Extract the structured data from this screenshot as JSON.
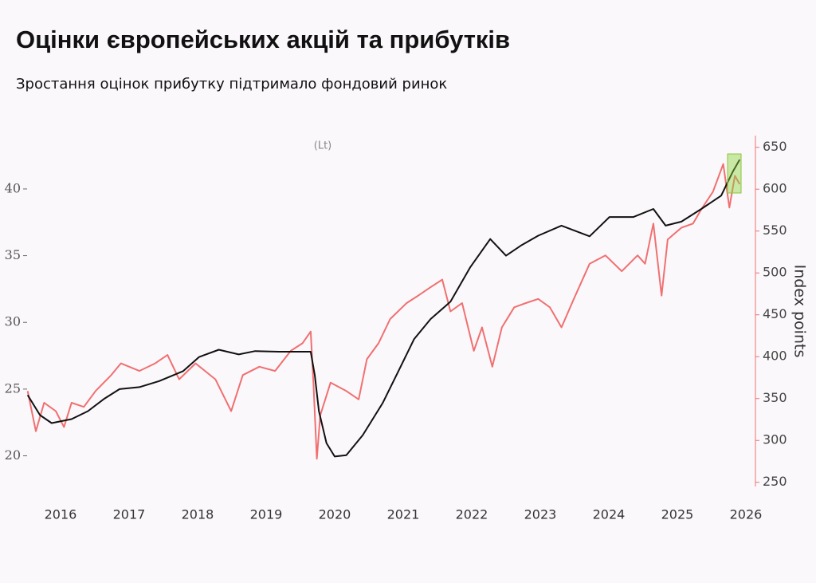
{
  "chart_data": {
    "type": "line",
    "title": "Оцінки європейських акцій та прибутків",
    "subtitle": "Зростання оцінок прибутку підтримало фондовий ринок",
    "annotation": "(Lt)",
    "y2_label": "Index points",
    "xlim": [
      2016.0,
      2026.64
    ],
    "xticks": [
      {
        "value": 2016.5,
        "label": "2016"
      },
      {
        "value": 2017.5,
        "label": "2017"
      },
      {
        "value": 2018.5,
        "label": "2018"
      },
      {
        "value": 2019.5,
        "label": "2019"
      },
      {
        "value": 2020.5,
        "label": "2020"
      },
      {
        "value": 2021.5,
        "label": "2021"
      },
      {
        "value": 2022.5,
        "label": "2022"
      },
      {
        "value": 2023.5,
        "label": "2023"
      },
      {
        "value": 2024.5,
        "label": "2024"
      },
      {
        "value": 2025.5,
        "label": "2025"
      },
      {
        "value": 2026.5,
        "label": "2026"
      }
    ],
    "ylim": [
      17.7,
      44.0
    ],
    "yticks": [
      20,
      25,
      30,
      35,
      40
    ],
    "y2lim": [
      245,
      664
    ],
    "y2ticks": [
      250,
      300,
      350,
      400,
      450,
      500,
      550,
      600,
      650
    ],
    "y2_color": "#f07070",
    "series": [
      {
        "color": "#111111",
        "axis": "y",
        "x": [
          2016.02,
          2016.2,
          2016.37,
          2016.66,
          2016.9,
          2017.13,
          2017.36,
          2017.65,
          2017.94,
          2018.29,
          2018.52,
          2018.81,
          2019.1,
          2019.34,
          2019.69,
          2020.15,
          2020.21,
          2020.27,
          2020.38,
          2020.5,
          2020.67,
          2020.91,
          2021.2,
          2021.43,
          2021.66,
          2021.9,
          2022.19,
          2022.48,
          2022.77,
          2023.0,
          2023.23,
          2023.47,
          2023.81,
          2024.22,
          2024.51,
          2024.86,
          2025.15,
          2025.33,
          2025.56,
          2025.85,
          2026.14,
          2026.31,
          2026.41
        ],
        "values": [
          24.55,
          23.05,
          22.45,
          22.75,
          23.35,
          24.25,
          25.0,
          25.15,
          25.6,
          26.35,
          27.4,
          27.95,
          27.6,
          27.85,
          27.8,
          27.8,
          26.05,
          23.35,
          20.95,
          19.95,
          20.05,
          21.55,
          23.95,
          26.35,
          28.75,
          30.25,
          31.55,
          34.15,
          36.25,
          35.0,
          35.8,
          36.5,
          37.25,
          36.45,
          37.9,
          37.9,
          38.5,
          37.25,
          37.55,
          38.5,
          39.5,
          41.3,
          42.2
        ]
      },
      {
        "color": "#f07070",
        "axis": "y2",
        "x": [
          2016.02,
          2016.14,
          2016.26,
          2016.43,
          2016.55,
          2016.66,
          2016.84,
          2017.01,
          2017.24,
          2017.38,
          2017.65,
          2017.88,
          2018.06,
          2018.23,
          2018.47,
          2018.76,
          2018.99,
          2019.16,
          2019.4,
          2019.63,
          2019.86,
          2020.03,
          2020.15,
          2020.19,
          2020.24,
          2020.29,
          2020.44,
          2020.67,
          2020.85,
          2020.97,
          2021.14,
          2021.31,
          2021.55,
          2021.72,
          2021.9,
          2022.07,
          2022.19,
          2022.36,
          2022.53,
          2022.65,
          2022.8,
          2022.94,
          2023.12,
          2023.29,
          2023.47,
          2023.64,
          2023.81,
          2023.99,
          2024.22,
          2024.45,
          2024.69,
          2024.92,
          2025.03,
          2025.15,
          2025.27,
          2025.36,
          2025.56,
          2025.73,
          2025.85,
          2026.02,
          2026.17,
          2026.26,
          2026.34,
          2026.41
        ],
        "values": [
          359,
          311,
          345,
          335,
          316,
          345,
          340,
          359,
          378,
          392,
          383,
          392,
          402,
          373,
          392,
          373,
          335,
          378,
          388,
          383,
          407,
          416,
          430,
          369,
          278,
          330,
          369,
          359,
          349,
          397,
          416,
          445,
          464,
          473,
          483,
          492,
          454,
          464,
          407,
          435,
          388,
          435,
          459,
          464,
          469,
          459,
          435,
          469,
          511,
          521,
          502,
          521,
          511,
          559,
          473,
          540,
          554,
          559,
          576,
          597,
          630,
          578,
          616,
          606
        ]
      }
    ]
  }
}
